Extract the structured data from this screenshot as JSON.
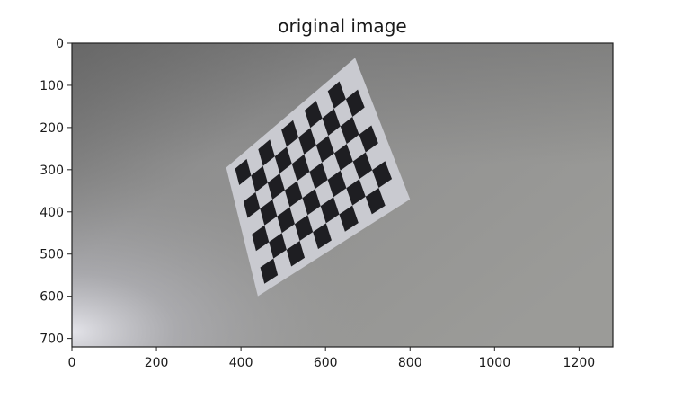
{
  "figure": {
    "title": "original image",
    "image_width": 1280,
    "image_height": 720,
    "x_ticks": [
      0,
      200,
      400,
      600,
      800,
      1000,
      1200
    ],
    "y_ticks": [
      0,
      100,
      200,
      300,
      400,
      500,
      600,
      700
    ],
    "checkerboard": {
      "rows": 6,
      "cols": 9,
      "corners": {
        "top_left": [
          365,
          295
        ],
        "top_right": [
          670,
          35
        ],
        "bottom_right": [
          800,
          370
        ],
        "bottom_left": [
          440,
          600
        ]
      }
    },
    "colors": {
      "background_light": "#a6a6a6",
      "background_dark": "#707070",
      "paper": "#c9cad0",
      "square": "#1e1e22"
    }
  }
}
